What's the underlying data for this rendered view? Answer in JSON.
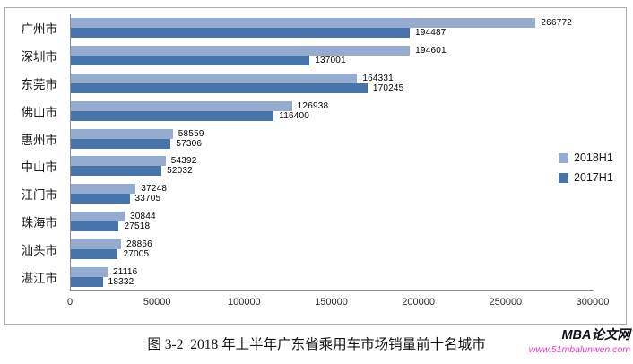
{
  "chart_data": {
    "type": "bar",
    "orientation": "horizontal",
    "title": "",
    "categories": [
      "广州市",
      "深圳市",
      "东莞市",
      "佛山市",
      "惠州市",
      "中山市",
      "江门市",
      "珠海市",
      "汕头市",
      "湛江市"
    ],
    "series": [
      {
        "name": "2018H1",
        "color": "#95abd0",
        "values": [
          266772,
          194601,
          164331,
          126938,
          58559,
          54392,
          37248,
          30844,
          28866,
          21116
        ]
      },
      {
        "name": "2017H1",
        "color": "#4674ab",
        "values": [
          194487,
          137001,
          170245,
          116400,
          57306,
          52032,
          33705,
          27518,
          27005,
          18332
        ]
      }
    ],
    "xlim": [
      0,
      300000
    ],
    "x_ticks": [
      0,
      50000,
      100000,
      150000,
      200000,
      250000,
      300000
    ],
    "data_labels": true,
    "grid": false,
    "legend_position": "right"
  },
  "caption": "图 3-2  2018 年上半年广东省乘用车市场销量前十名城市",
  "watermark": {
    "brand": "MBA论文网",
    "url": "www.51mbalunwen.com"
  }
}
